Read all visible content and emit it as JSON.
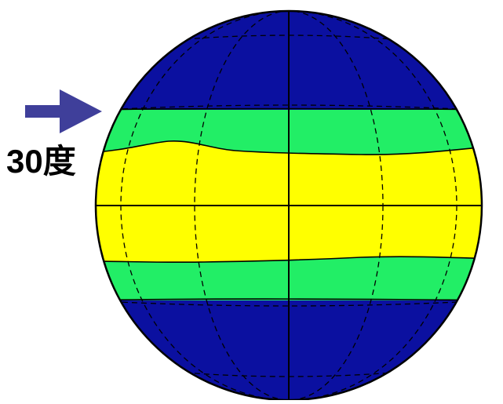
{
  "diagram": {
    "latitude_label": "30度",
    "colors": {
      "polar": "#0b10a0",
      "subtropical": "#22ee66",
      "tropical": "#ffff00",
      "arrow": "#3f3f9a",
      "outline": "#000000",
      "background": "#ffffff"
    },
    "icons": {
      "pointer": "arrow-right-icon"
    }
  }
}
